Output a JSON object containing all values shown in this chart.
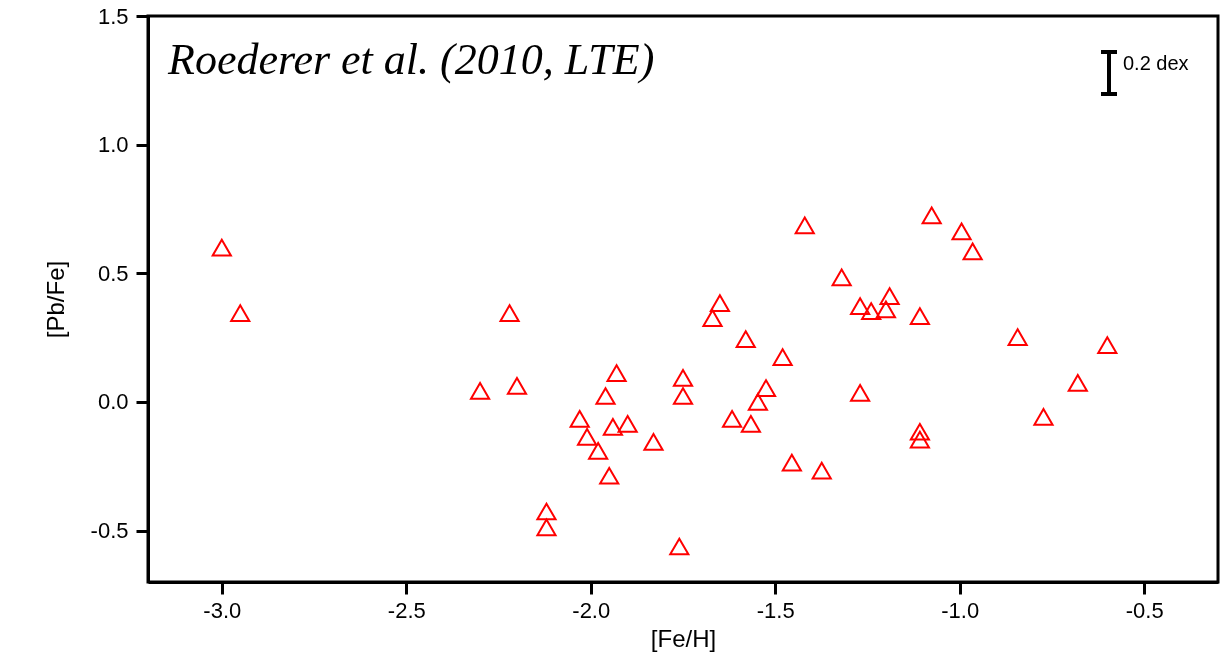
{
  "chart_data": {
    "type": "scatter",
    "xlabel": "[Fe/H]",
    "ylabel": "[Pb/Fe]",
    "annotations": [
      "Roederer et al. (2010, LTE)",
      "0.2 dex"
    ],
    "xlim": [
      -3.2,
      -0.3
    ],
    "xticks": [
      {
        "value": -3,
        "label": "-3.0"
      },
      {
        "value": -2.5,
        "label": "-2.5"
      },
      {
        "value": -2,
        "label": "-2.0"
      },
      {
        "value": -1.5,
        "label": "-1.5"
      },
      {
        "value": -1,
        "label": "-1.0"
      },
      {
        "value": -0.5,
        "label": "-0.5"
      }
    ],
    "ylim": [
      -0.7,
      1.5
    ],
    "yticks": [
      {
        "value": -0.5,
        "label": "-0.5"
      },
      {
        "value": 0,
        "label": "0.0"
      },
      {
        "value": 0.5,
        "label": "0.5"
      },
      {
        "value": 1,
        "label": "1.0"
      },
      {
        "value": 1.5,
        "label": "1.5"
      }
    ],
    "grid": false,
    "marker": "triangle",
    "series": [
      {
        "color": "#ff0000",
        "x": [
          -3.0,
          -2.95,
          -2.3,
          -2.22,
          -2.2,
          -1.93,
          -1.96,
          -2.03,
          -2.01,
          -1.98,
          -1.94,
          -1.9,
          -1.83,
          -1.95,
          -2.12,
          -2.12,
          -1.76,
          -1.75,
          -1.75,
          -1.65,
          -1.67,
          -1.58,
          -1.48,
          -1.525,
          -1.547,
          -1.617,
          -1.566,
          -1.455,
          -1.42,
          -1.076,
          -0.995,
          -0.965,
          -1.32,
          -1.19,
          -1.27,
          -1.24,
          -1.2,
          -1.108,
          -0.843,
          -0.68,
          -0.773,
          -1.27,
          -1.108,
          -1.108,
          -1.374,
          -0.6
        ],
        "values": [
          0.6,
          0.345,
          0.043,
          0.345,
          0.062,
          0.112,
          0.023,
          -0.066,
          -0.136,
          -0.19,
          -0.097,
          -0.085,
          -0.155,
          -0.287,
          -0.426,
          -0.488,
          -0.562,
          0.093,
          0.023,
          0.384,
          0.326,
          0.244,
          0.174,
          0.054,
          0.0,
          -0.066,
          -0.085,
          -0.236,
          0.686,
          0.725,
          0.663,
          0.585,
          0.484,
          0.411,
          0.372,
          0.353,
          0.36,
          0.333,
          0.252,
          0.074,
          -0.058,
          0.035,
          -0.116,
          -0.147,
          -0.267,
          0.221
        ]
      }
    ]
  }
}
